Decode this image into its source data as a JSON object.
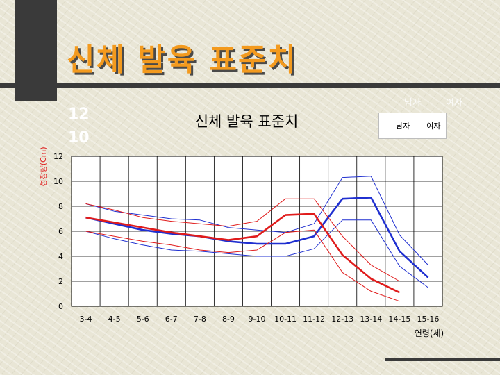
{
  "slide": {
    "title": "신체 발육 표준치"
  },
  "ghost_text": {
    "num_a": "12",
    "num_b": "10",
    "male": "남자",
    "female": "여자"
  },
  "chart_data": {
    "type": "line",
    "title": "신체 발육 표준치",
    "xlabel": "연령(세)",
    "ylabel": "성장량(Cm)",
    "categories": [
      "3-4",
      "4-5",
      "5-6",
      "6-7",
      "7-8",
      "8-9",
      "9-10",
      "10-11",
      "11-12",
      "12-13",
      "13-14",
      "14-15",
      "15-16"
    ],
    "ylim": [
      0,
      12
    ],
    "yticks": [
      0,
      2,
      4,
      6,
      8,
      10,
      12
    ],
    "grid": true,
    "legend_position": "top-right",
    "legend": [
      {
        "label": "남자",
        "color": "#1f2fd0"
      },
      {
        "label": "여자",
        "color": "#e01b1b"
      }
    ],
    "series": [
      {
        "name": "남자",
        "role": "upper",
        "color": "#1f2fd0",
        "values": [
          8.2,
          7.6,
          7.3,
          7.0,
          6.9,
          6.3,
          6.1,
          5.9,
          6.6,
          10.3,
          10.4,
          5.7,
          3.3
        ]
      },
      {
        "name": "남자",
        "role": "mean",
        "color": "#1f2fd0",
        "values": [
          7.1,
          6.6,
          6.1,
          5.8,
          5.6,
          5.2,
          5.0,
          5.0,
          5.6,
          8.6,
          8.7,
          4.4,
          2.3
        ]
      },
      {
        "name": "남자",
        "role": "lower",
        "color": "#1f2fd0",
        "values": [
          6.0,
          5.4,
          4.9,
          4.5,
          4.4,
          4.2,
          4.0,
          4.0,
          4.6,
          6.9,
          6.9,
          3.2,
          1.5
        ]
      },
      {
        "name": "여자",
        "role": "upper",
        "color": "#e01b1b",
        "values": [
          8.2,
          7.7,
          7.1,
          6.8,
          6.6,
          6.4,
          6.8,
          8.6,
          8.6,
          5.6,
          3.3,
          2.0,
          null
        ]
      },
      {
        "name": "여자",
        "role": "mean",
        "color": "#e01b1b",
        "values": [
          7.1,
          6.7,
          6.3,
          5.9,
          5.6,
          5.3,
          5.6,
          7.3,
          7.4,
          4.1,
          2.2,
          1.1,
          null
        ]
      },
      {
        "name": "여자",
        "role": "lower",
        "color": "#e01b1b",
        "values": [
          6.0,
          5.6,
          5.2,
          4.9,
          4.5,
          4.3,
          4.5,
          5.9,
          6.1,
          2.7,
          1.2,
          0.4,
          null
        ]
      }
    ]
  }
}
